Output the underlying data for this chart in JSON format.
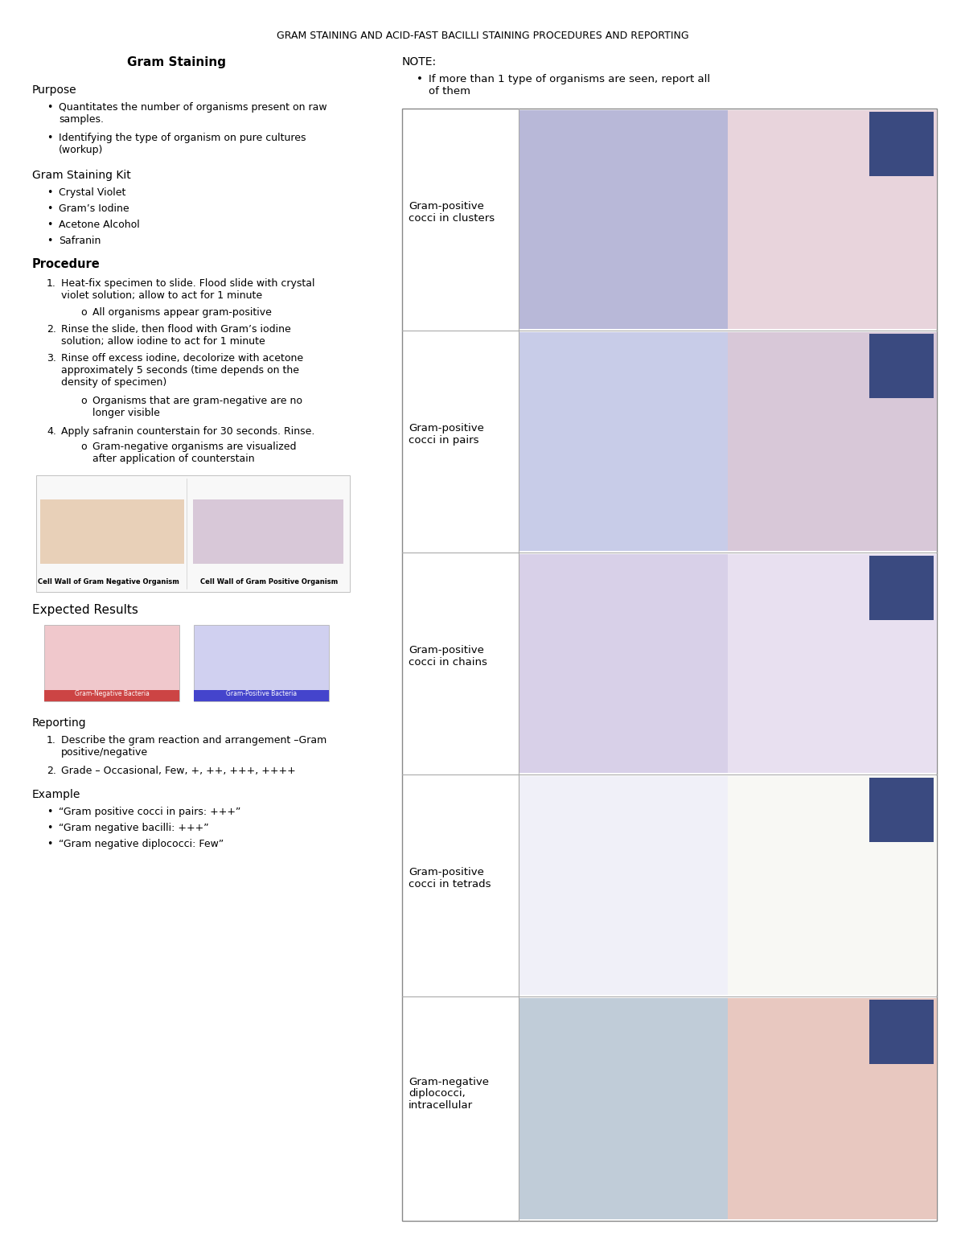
{
  "title": "GRAM STAINING AND ACID-FAST BACILLI STAINING PROCEDURES AND REPORTING",
  "bg_color": "#ffffff",
  "text_color": "#000000",
  "gram_header": "Gram Staining",
  "note_header": "NOTE:",
  "note_bullet": "If more than 1 type of organisms are seen, report all\nof them",
  "purpose_header": "Purpose",
  "purpose_bullets": [
    "Quantitates the number of organisms present on raw\nsamples.",
    "Identifying the type of organism on pure cultures\n(workup)"
  ],
  "kit_header": "Gram Staining Kit",
  "kit_bullets": [
    "Crystal Violet",
    "Gram’s Iodine",
    "Acetone Alcohol",
    "Safranin"
  ],
  "procedure_header": "Procedure",
  "procedure_numbered": [
    "Heat-fix specimen to slide. Flood slide with crystal\nviolet solution; allow to act for 1 minute",
    "Rinse the slide, then flood with Gram’s iodine\nsolution; allow iodine to act for 1 minute",
    "Rinse off excess iodine, decolorize with acetone\napproximately 5 seconds (time depends on the\ndensity of specimen)",
    "Apply safranin counterstain for 30 seconds. Rinse."
  ],
  "procedure_subs": {
    "0": "All organisms appear gram-positive",
    "2": "Organisms that are gram-negative are no\nlonger visible",
    "3": "Gram-negative organisms are visualized\nafter application of counterstain"
  },
  "expected_header": "Expected Results",
  "reporting_header": "Reporting",
  "reporting_items": [
    "Describe the gram reaction and arrangement –Gram\npositive/negative",
    "Grade – Occasional, Few, +, ++, +++, ++++"
  ],
  "example_header": "Example",
  "example_bullets": [
    "“Gram positive cocci in pairs: +++”",
    "“Gram negative bacilli: +++”",
    "“Gram negative diplococci: Few”"
  ],
  "image_labels": [
    "Gram-positive\ncocci in clusters",
    "Gram-positive\ncocci in pairs",
    "Gram-positive\ncocci in chains",
    "Gram-positive\ncocci in tetrads",
    "Gram-negative\ndiplococci,\nintracellular"
  ],
  "row_img_colors": [
    [
      "#b8b8d8",
      "#e8d4dc",
      "#3a4a80"
    ],
    [
      "#c8cce8",
      "#d8c8d8",
      "#3a4a80"
    ],
    [
      "#d8d0e8",
      "#e8e0f0",
      "#3a4a80"
    ],
    [
      "#f0f0f8",
      "#f8f8f4",
      "#3a4a80"
    ],
    [
      "#c0ccd8",
      "#e8c8c0",
      "#3a4a80"
    ]
  ],
  "table_border_color": "#888888",
  "table_line_color": "#aaaaaa",
  "diag_border": "#aaaaaa",
  "diag_fill": "#f8f8f8",
  "exp_img1_color": "#f0c8cc",
  "exp_img2_color": "#d0d0f0",
  "exp_label1_bg": "#cc4444",
  "exp_label2_bg": "#4444cc"
}
